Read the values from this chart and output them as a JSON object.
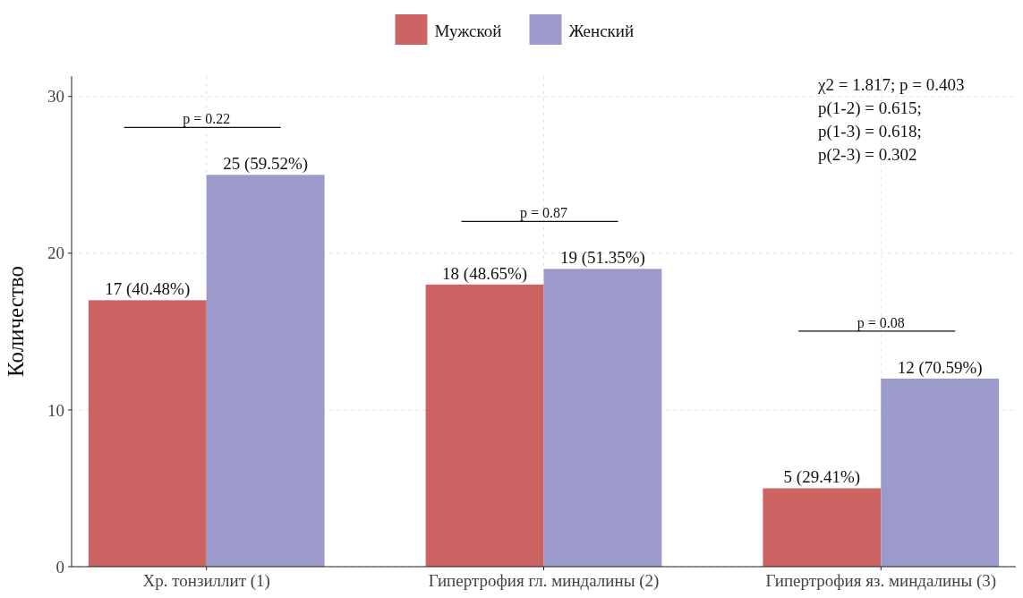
{
  "chart_data": {
    "type": "bar",
    "ylabel": "Количество",
    "categories": [
      "Хр. тонзиллит (1)",
      "Гипертрофия гл. миндалины (2)",
      "Гипертрофия яз. миндалины (3)"
    ],
    "series": [
      {
        "name": "Мужской",
        "color": "#cb6463",
        "values": [
          17,
          18,
          5
        ],
        "value_labels": [
          "17 (40.48%)",
          "18 (48.65%)",
          "5 (29.41%)"
        ]
      },
      {
        "name": "Женский",
        "color": "#9b9acb",
        "values": [
          25,
          19,
          12
        ],
        "value_labels": [
          "25 (59.52%)",
          "19 (51.35%)",
          "12 (70.59%)"
        ]
      }
    ],
    "ylim": [
      0,
      31.3
    ],
    "yticks": [
      0,
      10,
      20,
      30
    ],
    "grid": true,
    "legend": "top",
    "annotations": [
      "p = 0.22",
      "p = 0.87",
      "p = 0.08",
      "χ2 = 1.817; p = 0.403",
      "p(1-2) = 0.615;",
      "p(1-3) = 0.618;",
      "p(2-3) = 0.302"
    ]
  }
}
